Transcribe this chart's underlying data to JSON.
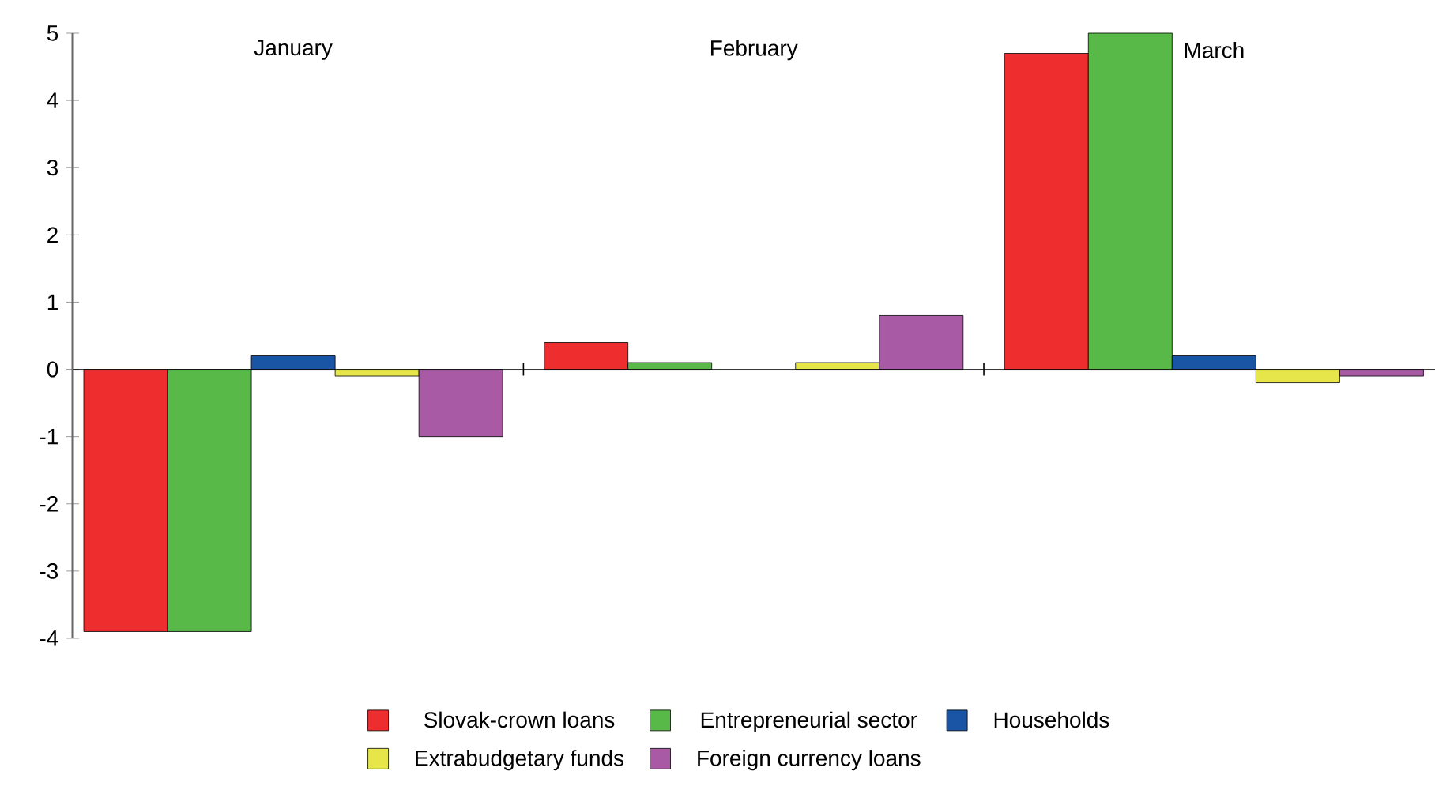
{
  "chart_data": {
    "type": "bar",
    "categories": [
      "January",
      "February",
      "March"
    ],
    "series": [
      {
        "name": "Slovak-crown loans",
        "color": "#ee2e2e",
        "values": [
          -3.9,
          0.4,
          4.7
        ]
      },
      {
        "name": "Entrepreneurial sector",
        "color": "#58b848",
        "values": [
          -3.9,
          0.1,
          5.0
        ]
      },
      {
        "name": "Households",
        "color": "#1a55a5",
        "values": [
          0.2,
          null,
          0.2
        ]
      },
      {
        "name": "Extrabudgetary funds",
        "color": "#e6e64a",
        "values": [
          -0.1,
          0.1,
          -0.2
        ]
      },
      {
        "name": "Foreign currency loans",
        "color": "#a85aa5",
        "values": [
          -1.0,
          0.8,
          -0.1
        ]
      }
    ],
    "ylim": [
      -4,
      5
    ],
    "yticks": [
      -4,
      -3,
      -2,
      -1,
      0,
      1,
      2,
      3,
      4,
      5
    ],
    "legend": "bottom"
  }
}
